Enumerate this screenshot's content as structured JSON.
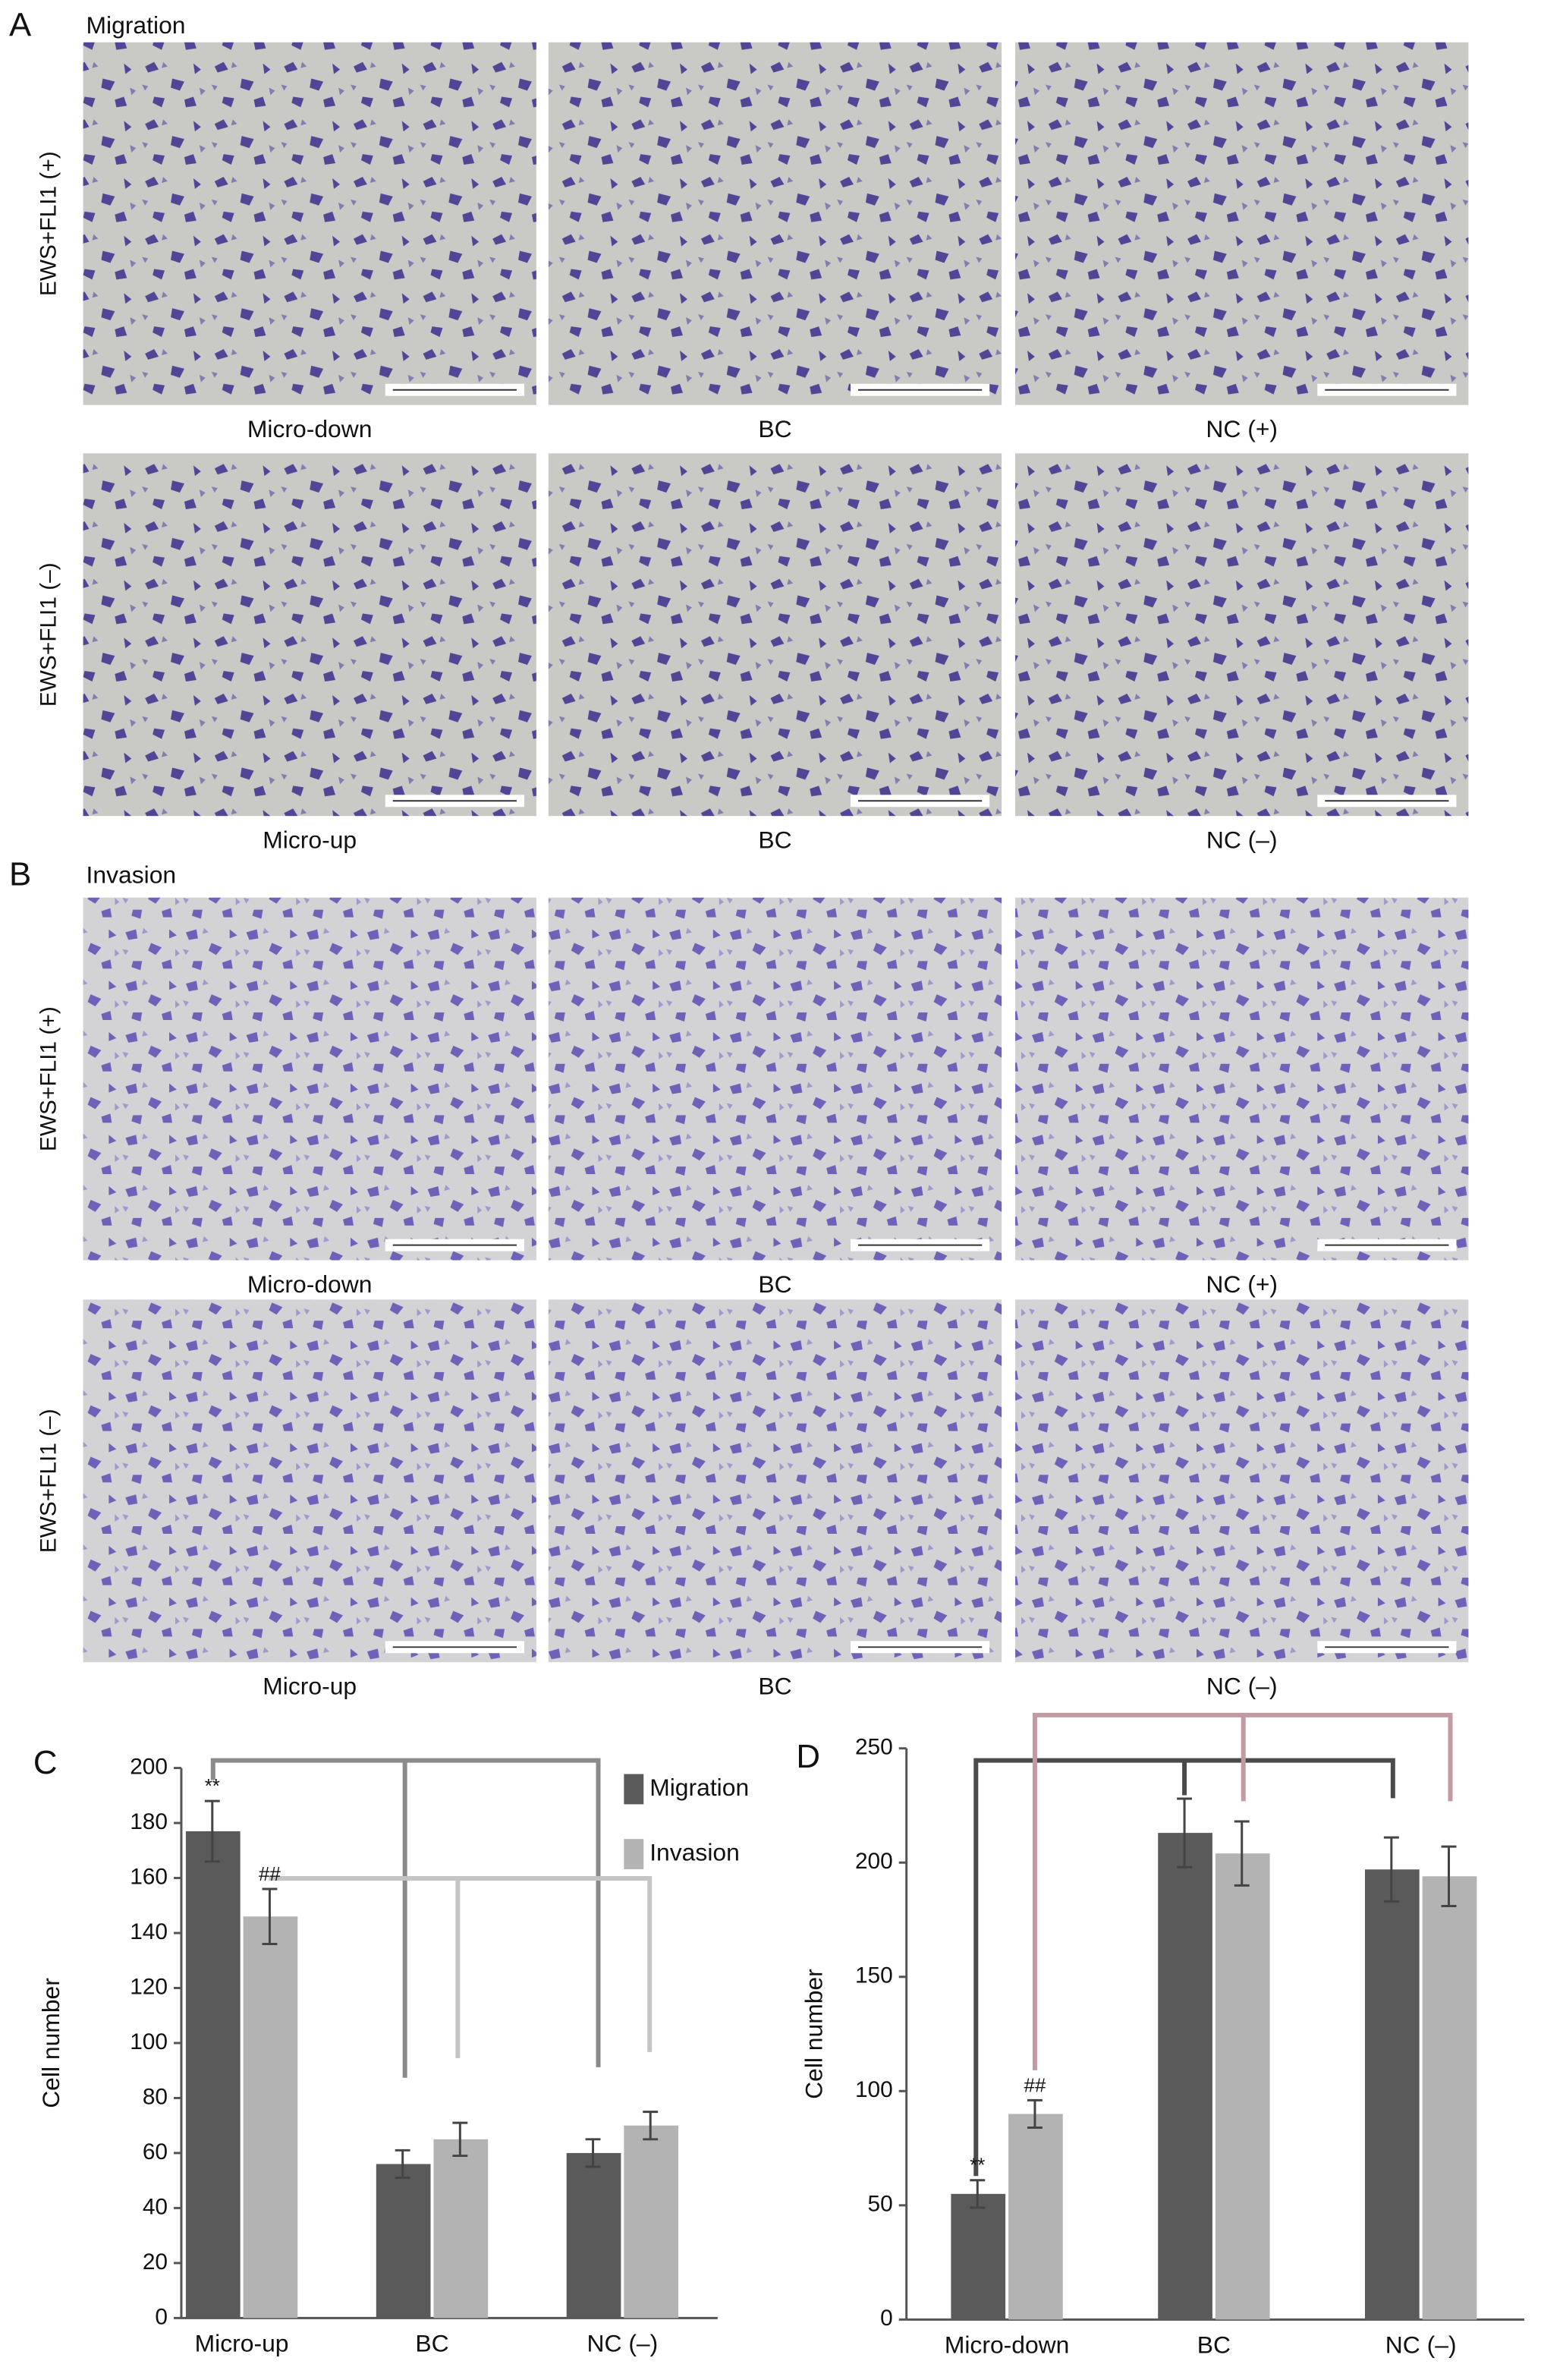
{
  "panels": [
    {
      "letter": "A",
      "title": "Migration",
      "row_labels": [
        "EWS+FLI1 (+)",
        "EWS+FLI1 (–)"
      ],
      "captions": [
        [
          "Micro-down",
          "BC",
          "NC (+)"
        ],
        [
          "Micro-up",
          "BC",
          "NC (–)"
        ]
      ]
    },
    {
      "letter": "B",
      "title": "Invasion",
      "row_labels": [
        "EWS+FLI1 (+)",
        "EWS+FLI1 (–)"
      ],
      "captions": [
        [
          "Micro-down",
          "BC",
          "NC (+)"
        ],
        [
          "Micro-up",
          "BC",
          "NC (–)"
        ]
      ]
    }
  ],
  "chart_data": [
    {
      "type": "bar",
      "label": "C",
      "ylabel": "Cell number",
      "categories": [
        "Micro-up",
        "BC",
        "NC (–)"
      ],
      "series": [
        {
          "name": "Migration",
          "color": "#5a5a5a",
          "values": [
            177,
            56,
            60
          ],
          "errors": [
            11,
            5,
            5
          ]
        },
        {
          "name": "Invasion",
          "color": "#b3b3b3",
          "values": [
            146,
            65,
            70
          ],
          "errors": [
            10,
            6,
            5
          ]
        }
      ],
      "ylim": [
        0,
        200
      ],
      "yticks": [
        0,
        20,
        40,
        60,
        80,
        100,
        120,
        140,
        160,
        180,
        200
      ],
      "annotations": [
        "**",
        "##"
      ],
      "legend": "upper right"
    },
    {
      "type": "bar",
      "label": "D",
      "ylabel": "Cell number",
      "categories": [
        "Micro-down",
        "BC",
        "NC (–)"
      ],
      "series": [
        {
          "color": "#5a5a5a",
          "values": [
            55,
            213,
            197
          ],
          "errors": [
            6,
            15,
            14
          ]
        },
        {
          "color": "#b3b3b3",
          "values": [
            90,
            204,
            194
          ],
          "errors": [
            6,
            14,
            13
          ]
        }
      ],
      "ylim": [
        0,
        250
      ],
      "yticks": [
        0,
        50,
        100,
        150,
        200,
        250
      ],
      "annotations": [
        "**",
        "##"
      ]
    }
  ]
}
